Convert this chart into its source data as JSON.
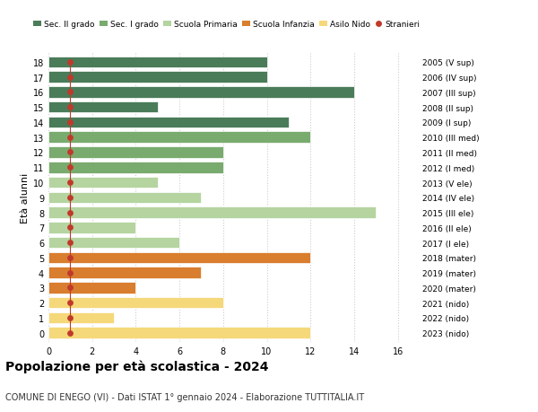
{
  "ages": [
    18,
    17,
    16,
    15,
    14,
    13,
    12,
    11,
    10,
    9,
    8,
    7,
    6,
    5,
    4,
    3,
    2,
    1,
    0
  ],
  "years": [
    "2005 (V sup)",
    "2006 (IV sup)",
    "2007 (III sup)",
    "2008 (II sup)",
    "2009 (I sup)",
    "2010 (III med)",
    "2011 (II med)",
    "2012 (I med)",
    "2013 (V ele)",
    "2014 (IV ele)",
    "2015 (III ele)",
    "2016 (II ele)",
    "2017 (I ele)",
    "2018 (mater)",
    "2019 (mater)",
    "2020 (mater)",
    "2021 (nido)",
    "2022 (nido)",
    "2023 (nido)"
  ],
  "values": [
    10,
    10,
    14,
    5,
    11,
    12,
    8,
    8,
    5,
    7,
    15,
    4,
    6,
    12,
    7,
    4,
    8,
    3,
    12
  ],
  "bar_colors": [
    "#4a7c59",
    "#4a7c59",
    "#4a7c59",
    "#4a7c59",
    "#4a7c59",
    "#7aab6e",
    "#7aab6e",
    "#7aab6e",
    "#b5d4a0",
    "#b5d4a0",
    "#b5d4a0",
    "#b5d4a0",
    "#b5d4a0",
    "#d97d2e",
    "#d97d2e",
    "#d97d2e",
    "#f5d87a",
    "#f5d87a",
    "#f5d87a"
  ],
  "legend_labels": [
    "Sec. II grado",
    "Sec. I grado",
    "Scuola Primaria",
    "Scuola Infanzia",
    "Asilo Nido",
    "Stranieri"
  ],
  "legend_colors": [
    "#4a7c59",
    "#7aab6e",
    "#b5d4a0",
    "#d97d2e",
    "#f5d87a",
    "#c0392b"
  ],
  "stranieri_color": "#c0392b",
  "stranieri_x": [
    1,
    1,
    1,
    1,
    1,
    1,
    1,
    1,
    1,
    1,
    1,
    1,
    1,
    1,
    1,
    1,
    1,
    1,
    1
  ],
  "title": "Popolazione per età scolastica - 2024",
  "subtitle": "COMUNE DI ENEGO (VI) - Dati ISTAT 1° gennaio 2024 - Elaborazione TUTTITALIA.IT",
  "ylabel": "Età alunni",
  "xlim": [
    0,
    17
  ],
  "xticks": [
    0,
    2,
    4,
    6,
    8,
    10,
    12,
    14,
    16
  ],
  "bg_color": "#ffffff",
  "bar_height": 0.75,
  "grid_color": "#cccccc"
}
